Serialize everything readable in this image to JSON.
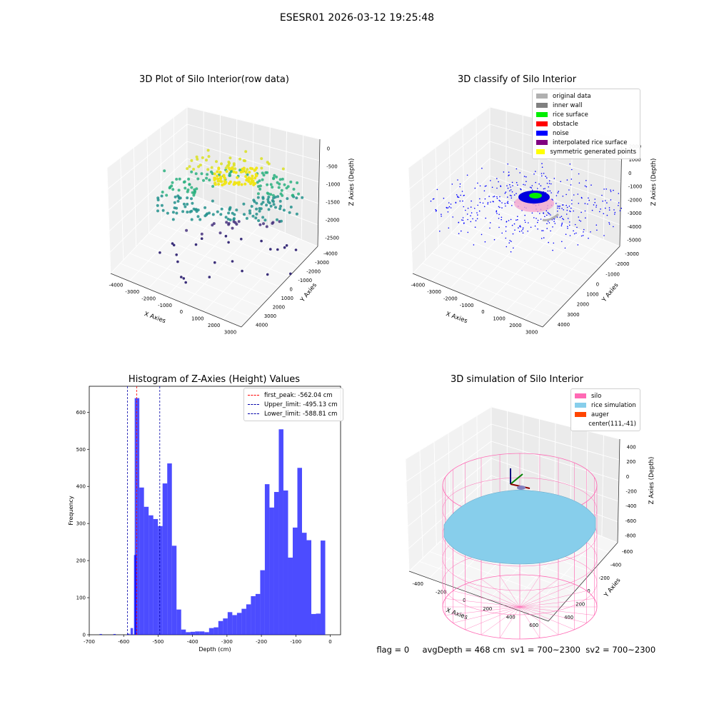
{
  "page": {
    "suptitle": "ESESR01 2026-03-12 19:25:48",
    "status": {
      "flag": "flag = 0",
      "avg_depth": "avgDepth = 468 cm",
      "sv1": "sv1 = 700~2300",
      "sv2": "sv2 = 700~2300"
    }
  },
  "panels": {
    "raw": {
      "title": "3D Plot of Silo Interior(row data)",
      "xlabel": "X Axies",
      "ylabel": "Y Axies",
      "zlabel": "Z Axies (Depth)",
      "x_ticks": [
        "-4000",
        "-3000",
        "-2000",
        "-1000",
        "0",
        "1000",
        "2000",
        "3000"
      ],
      "y_ticks": [
        "-4000",
        "-3000",
        "-2000",
        "-1000",
        "0",
        "1000",
        "2000",
        "3000",
        "4000"
      ],
      "z_ticks": [
        "0",
        "-500",
        "-1000",
        "-1500",
        "-2000",
        "-2500"
      ]
    },
    "classify": {
      "title": "3D classify of Silo Interior",
      "xlabel": "X Axies",
      "ylabel": "Y Axies",
      "zlabel": "Z Axies (Depth)",
      "x_ticks": [
        "-4000",
        "-3000",
        "-2000",
        "-1000",
        "0",
        "1000",
        "2000",
        "3000"
      ],
      "y_ticks": [
        "-3000",
        "-2000",
        "-1000",
        "0",
        "1000",
        "2000",
        "3000",
        "4000"
      ],
      "z_ticks": [
        "2000",
        "1000",
        "0",
        "-1000",
        "-2000",
        "-3000",
        "-4000",
        "-5000"
      ],
      "legend": [
        {
          "label": "original data",
          "color": "#b0b0b0"
        },
        {
          "label": "inner wall",
          "color": "#808080"
        },
        {
          "label": "rice surface",
          "color": "#00ee00"
        },
        {
          "label": "obstacle",
          "color": "#ff0000"
        },
        {
          "label": "noise",
          "color": "#0000ff"
        },
        {
          "label": "interpolated rice surface",
          "color": "#800080"
        },
        {
          "label": "symmetric generated points",
          "color": "#ffff00"
        }
      ]
    },
    "simulation": {
      "title": "3D simulation of Silo Interior",
      "xlabel": "X Axies",
      "ylabel": "Y Axies",
      "zlabel": "Z Axies (Depth)",
      "x_ticks": [
        "-400",
        "-200",
        "0",
        "200",
        "400",
        "600"
      ],
      "y_ticks": [
        "-600",
        "-400",
        "-200",
        "0",
        "200",
        "400"
      ],
      "z_ticks": [
        "400",
        "200",
        "0",
        "-200",
        "-400",
        "-600",
        "-800"
      ],
      "legend": [
        {
          "label": "silo",
          "color": "#ff69b4"
        },
        {
          "label": "rice simulation",
          "color": "#87ceeb"
        },
        {
          "label": "auger",
          "color": "#ff4500"
        },
        {
          "label": "center(111,-41)",
          "color": ""
        }
      ]
    }
  },
  "chart_data": {
    "type": "bar",
    "title": "Histogram of Z-Axies (Height) Values",
    "xlabel": "Depth (cm)",
    "ylabel": "Frequency",
    "xlim": [
      -700,
      30
    ],
    "ylim": [
      0,
      670
    ],
    "bar_color": "#0000ff",
    "bin_width": 13.5,
    "bin_start": -568,
    "x_ticks": [
      -700,
      -600,
      -500,
      -400,
      -300,
      -200,
      -100,
      0
    ],
    "y_ticks": [
      0,
      100,
      200,
      300,
      400,
      500,
      600
    ],
    "values": [
      638,
      397,
      345,
      322,
      312,
      293,
      408,
      462,
      240,
      68,
      14,
      7,
      8,
      9,
      9,
      7,
      18,
      20,
      37,
      44,
      61,
      53,
      59,
      70,
      82,
      104,
      110,
      174,
      406,
      343,
      385,
      554,
      389,
      208,
      289,
      450,
      275,
      255,
      56,
      57,
      254
    ],
    "small_bins_left": [
      {
        "x": -670,
        "value": 2
      },
      {
        "x": -630,
        "value": 2
      },
      {
        "x": -590,
        "value": 3
      },
      {
        "x": -580,
        "value": 18
      },
      {
        "x": -570,
        "value": 215
      }
    ],
    "vlines": [
      {
        "label": "first_peak: -562.04 cm",
        "x": -562.04,
        "color": "#ff0000"
      },
      {
        "label": "Upper_limit: -495.13 cm",
        "x": -495.13,
        "color": "#0000aa"
      },
      {
        "label": "Lower_limit: -588.81 cm",
        "x": -588.81,
        "color": "#0000aa"
      }
    ],
    "legend": "top-right"
  }
}
